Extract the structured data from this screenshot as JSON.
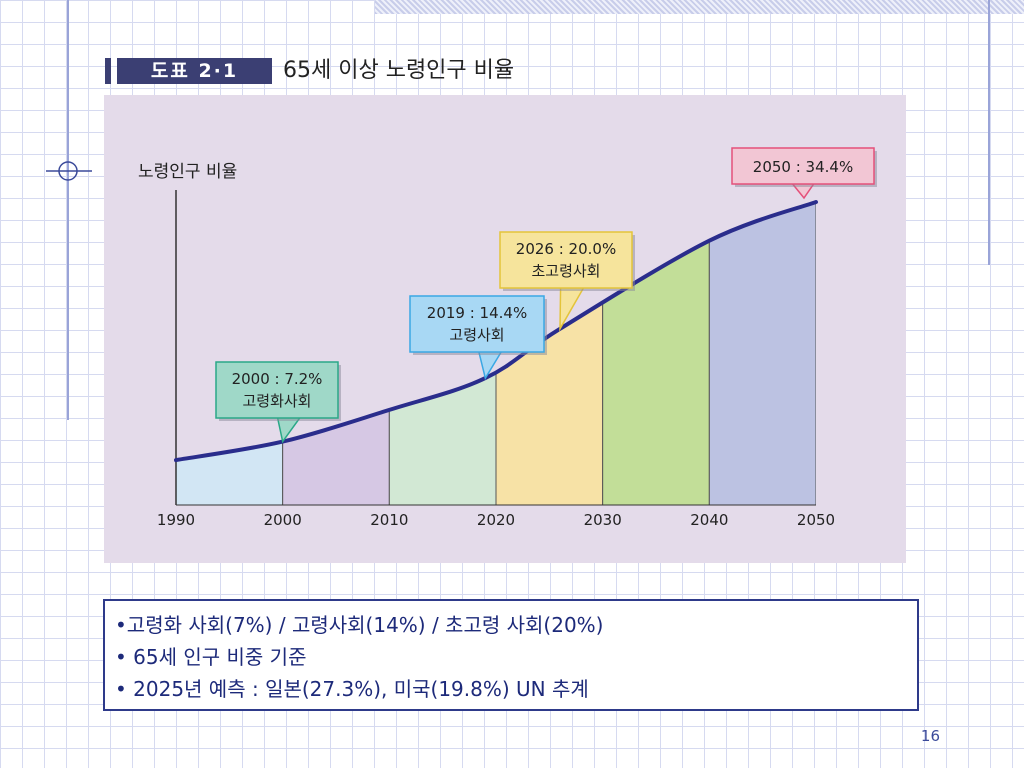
{
  "figure": {
    "label": "도표 2·1",
    "title": "65세 이상 노령인구 비율"
  },
  "chart_data": {
    "type": "area",
    "ylabel": "노령인구 비율",
    "xlabel": "",
    "x_ticks": [
      "1990",
      "2000",
      "2010",
      "2020",
      "2030",
      "2040",
      "2050"
    ],
    "series": [
      {
        "x": [
          1990,
          2000,
          2010,
          2019,
          2026,
          2040,
          2050
        ],
        "y": [
          5.1,
          7.2,
          10.8,
          14.4,
          20.0,
          30.0,
          34.4
        ]
      }
    ],
    "xlim": [
      1990,
      2050
    ],
    "ylim": [
      0,
      42
    ],
    "bands": [
      {
        "from": 1990,
        "to": 2000,
        "color": "#d2e6f4"
      },
      {
        "from": 2000,
        "to": 2010,
        "color": "#d6c8e4"
      },
      {
        "from": 2010,
        "to": 2020,
        "color": "#d2e8d4"
      },
      {
        "from": 2020,
        "to": 2030,
        "color": "#f7e2a6"
      },
      {
        "from": 2030,
        "to": 2040,
        "color": "#c2de98"
      },
      {
        "from": 2040,
        "to": 2050,
        "color": "#bcc2e2"
      }
    ],
    "line_color": "#2a2d8c",
    "annotations": [
      {
        "x": 2000,
        "y": 7.2,
        "line1": "2000 : 7.2%",
        "line2": "고령화사회",
        "bg": "#9fd8c8",
        "border": "#2aa888"
      },
      {
        "x": 2019,
        "y": 14.4,
        "line1": "2019 : 14.4%",
        "line2": "고령사회",
        "bg": "#a8d8f4",
        "border": "#3aa8e4"
      },
      {
        "x": 2026,
        "y": 20.0,
        "line1": "2026 : 20.0%",
        "line2": "초고령사회",
        "bg": "#f6e49c",
        "border": "#e4c43a"
      },
      {
        "x": 2050,
        "y": 34.4,
        "line1": "2050 : 34.4%",
        "line2": "",
        "bg": "#f2c6d4",
        "border": "#e4507a"
      }
    ]
  },
  "info": {
    "line1": "•고령화 사회(7%) / 고령사회(14%) / 초고령 사회(20%)",
    "line2": "• 65세 인구 비중 기준",
    "line3": "• 2025년 예측 : 일본(27.3%), 미국(19.8%) UN 추계"
  },
  "page_number": "16"
}
